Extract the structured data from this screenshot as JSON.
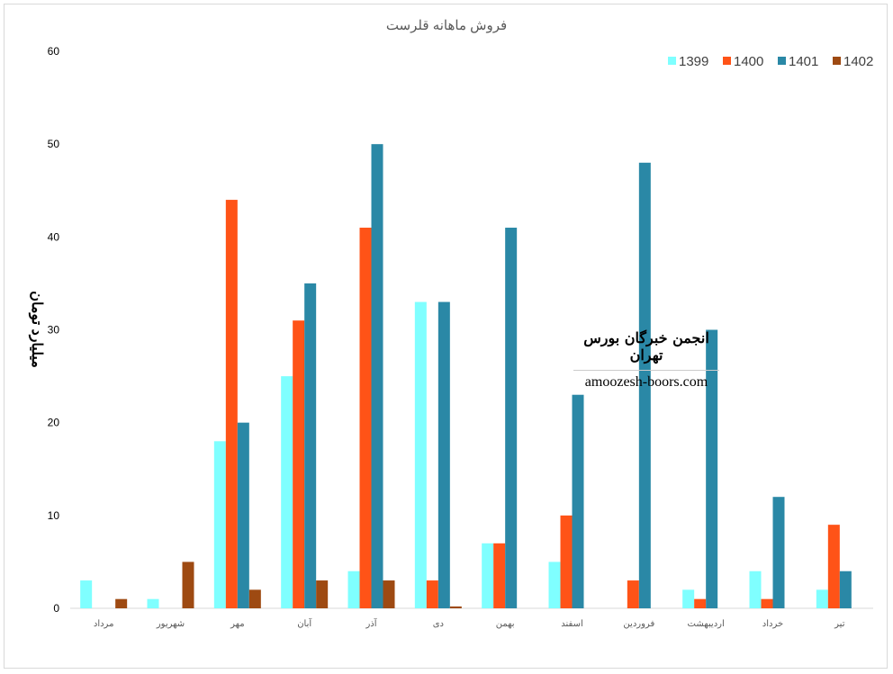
{
  "chart_data": {
    "type": "bar",
    "title": "فروش ماهانه قلرست",
    "xlabel": "",
    "ylabel": "میلیارد تومان",
    "ylim": [
      0,
      60
    ],
    "yticks": [
      0,
      10,
      20,
      30,
      40,
      50,
      60
    ],
    "grid": false,
    "legend_position": "top-right",
    "categories": [
      "مرداد",
      "شهریور",
      "مهر",
      "آبان",
      "آذر",
      "دی",
      "بهمن",
      "اسفند",
      "فروردین",
      "اردیبهشت",
      "خرداد",
      "تیر"
    ],
    "series": [
      {
        "name": "1399",
        "color": "#7fffff",
        "values": [
          3,
          1,
          18,
          25,
          4,
          33,
          7,
          5,
          0,
          2,
          4,
          2
        ]
      },
      {
        "name": "1400",
        "color": "#ff5317",
        "values": [
          0,
          0,
          44,
          31,
          41,
          3,
          7,
          10,
          3,
          1,
          1,
          9
        ]
      },
      {
        "name": "1401",
        "color": "#2a88a6",
        "values": [
          0,
          0,
          20,
          35,
          50,
          33,
          41,
          23,
          48,
          30,
          12,
          4
        ]
      },
      {
        "name": "1402",
        "color": "#9e4a12",
        "values": [
          1,
          5,
          2,
          3,
          3,
          0.2,
          0,
          0,
          0,
          0,
          0,
          0
        ]
      }
    ]
  },
  "watermark": {
    "line1": "انجمن خبرگان بورس تهران",
    "line2": "amoozesh-boors.com"
  }
}
